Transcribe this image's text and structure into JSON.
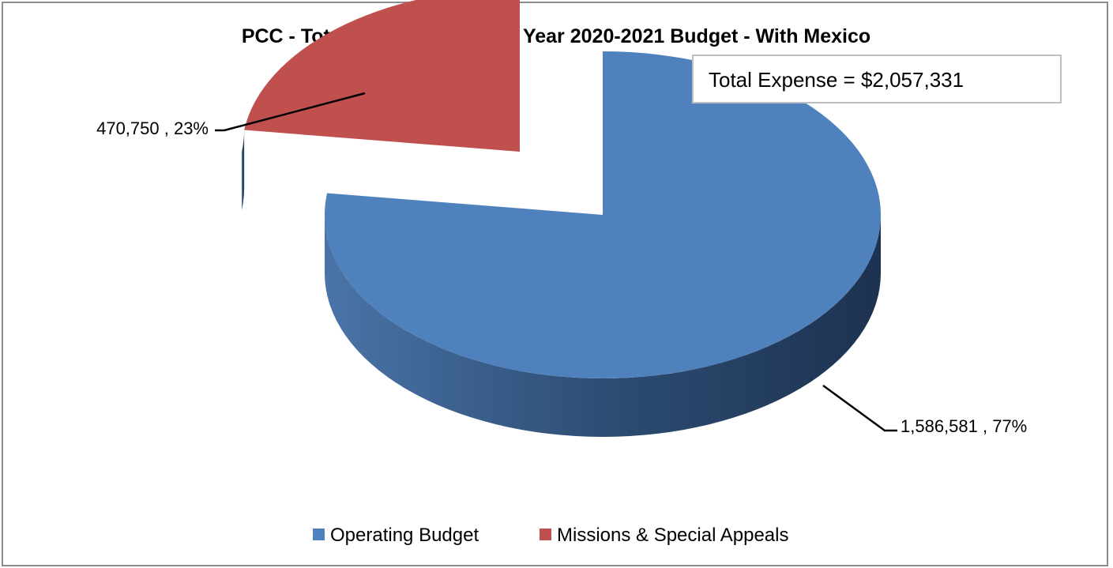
{
  "chart_data": {
    "type": "pie",
    "title": "PCC - Total Expenses -  Fiscal Year 2020-2021 Budget - With Mexico",
    "annotation": "Total Expense = $2,057,331",
    "slices": [
      {
        "name": "Operating Budget",
        "value": 1586581,
        "percent": 77,
        "label": "1,586,581  , 77%",
        "color": "#4f81bd",
        "side_color": "#385d8a",
        "dark_color": "#1f3452"
      },
      {
        "name": "Missions & Special Appeals",
        "value": 470750,
        "percent": 23,
        "label": "470,750  , 23%",
        "color": "#c0504d",
        "side_color": "#6b2422",
        "dark_color": "#4a1c1c"
      }
    ],
    "legend": {
      "position": "bottom",
      "items": [
        "Operating Budget",
        "Missions & Special Appeals"
      ]
    },
    "style": "3d-pie-exploded"
  }
}
